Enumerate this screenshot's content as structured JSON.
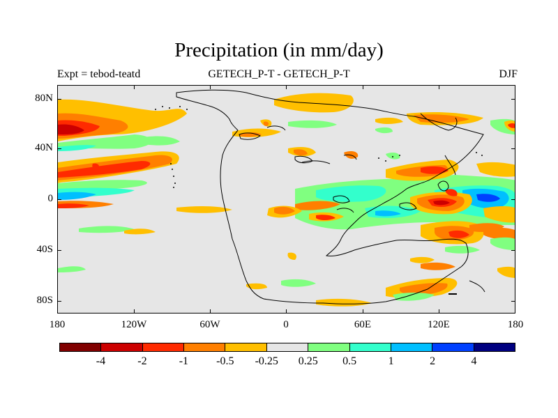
{
  "title": "Precipitation (in mm/day)",
  "subtitle_left": "Expt = tebod-teatd",
  "subtitle_center": "GETECH_P-T - GETECH_P-T",
  "subtitle_right": "DJF",
  "map": {
    "projection": "cylindrical-equidistant",
    "lon_range": [
      -180,
      180
    ],
    "lat_range": [
      -90,
      90
    ],
    "lat_ticks": [
      "80N",
      "40N",
      "0",
      "40S",
      "80S"
    ],
    "lon_ticks": [
      "180",
      "120W",
      "60W",
      "0",
      "60E",
      "120E",
      "180"
    ],
    "background_color": "#e6e6e6"
  },
  "colorbar": {
    "colors": [
      "#800000",
      "#cc0000",
      "#ff2a00",
      "#ff7f00",
      "#ffbf00",
      "#e6e6e6",
      "#80ff80",
      "#33ffcc",
      "#00bfff",
      "#0040ff",
      "#000080"
    ],
    "labels": [
      "-4",
      "-2",
      "-1",
      "-0.5",
      "-0.25",
      "0.25",
      "0.5",
      "1",
      "2",
      "4"
    ]
  }
}
